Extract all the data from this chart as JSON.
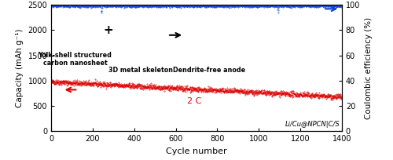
{
  "xlabel": "Cycle number",
  "ylabel_left": "Capacity (mAh g⁻¹)",
  "ylabel_right": "Coulombic efficiency (%)",
  "xlim": [
    0,
    1400
  ],
  "ylim_left": [
    0,
    2500
  ],
  "ylim_right": [
    0,
    100
  ],
  "yticks_left": [
    0,
    500,
    1000,
    1500,
    2000,
    2500
  ],
  "yticks_right": [
    0,
    20,
    40,
    60,
    80,
    100
  ],
  "xticks": [
    0,
    200,
    400,
    600,
    800,
    1000,
    1200,
    1400
  ],
  "capacity_color": "#dd0000",
  "coulombic_color": "#1144cc",
  "capacity_start": 980,
  "capacity_end": 680,
  "n_cycles": 1400,
  "label_2C": "2 C",
  "label_sample": "Li/Cu@NPCN|C/S",
  "label_yolk": "Yolk-shell structured\ncarbon nanosheet",
  "label_metal": "3D metal skeleton",
  "label_dendrite": "Dendrite-free anode",
  "background_color": "#ffffff"
}
